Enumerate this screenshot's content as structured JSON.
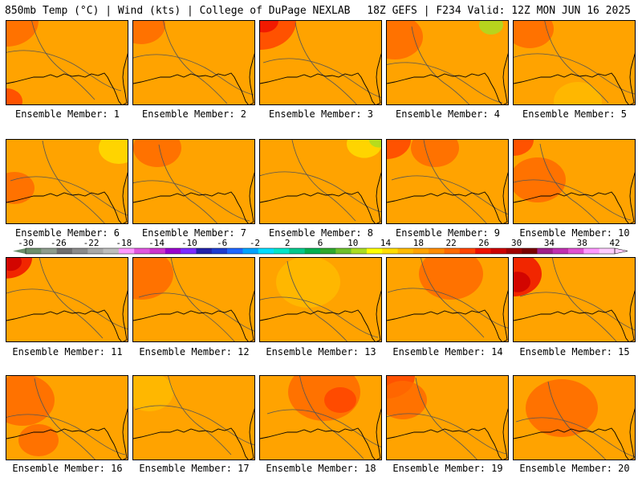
{
  "header": {
    "left": "850mb Temp (°C) | Wind (kts) | College of DuPage NEXLAB",
    "right": "18Z GEFS | F234 Valid: 12Z MON JUN 16 2025"
  },
  "colorbar": {
    "labels": [
      "-30",
      "-26",
      "-22",
      "-18",
      "-14",
      "-10",
      "-6",
      "-2",
      "2",
      "6",
      "10",
      "14",
      "18",
      "22",
      "26",
      "30",
      "34",
      "38",
      "42"
    ],
    "colors": [
      "#6b8f6b",
      "#8c9c8c",
      "#6e6e6e",
      "#8a8a8a",
      "#a8a8a8",
      "#bdbdbd",
      "#ff99ff",
      "#e055e0",
      "#cc33cc",
      "#9900cc",
      "#7a2bff",
      "#2222aa",
      "#1e3ccf",
      "#1e66ff",
      "#00a2ff",
      "#00ddff",
      "#00e5c8",
      "#00c78c",
      "#00b050",
      "#2ea82e",
      "#6cc02c",
      "#aadd22",
      "#ffff00",
      "#ffdd00",
      "#ffbb00",
      "#ffa300",
      "#ff8c00",
      "#ff6a00",
      "#ff4400",
      "#ee1100",
      "#cc0000",
      "#a00000",
      "#7a0000",
      "#a0208a",
      "#c030b0",
      "#e050d0",
      "#ff99ff",
      "#ffccff"
    ]
  },
  "panels": [
    {
      "label": "Ensemble Member: 1"
    },
    {
      "label": "Ensemble Member: 2"
    },
    {
      "label": "Ensemble Member: 3"
    },
    {
      "label": "Ensemble Member: 4"
    },
    {
      "label": "Ensemble Member: 5"
    },
    {
      "label": "Ensemble Member: 6"
    },
    {
      "label": "Ensemble Member: 7"
    },
    {
      "label": "Ensemble Member: 8"
    },
    {
      "label": "Ensemble Member: 9"
    },
    {
      "label": "Ensemble Member: 10"
    },
    {
      "label": "Ensemble Member: 11"
    },
    {
      "label": "Ensemble Member: 12"
    },
    {
      "label": "Ensemble Member: 13"
    },
    {
      "label": "Ensemble Member: 14"
    },
    {
      "label": "Ensemble Member: 15"
    },
    {
      "label": "Ensemble Member: 16"
    },
    {
      "label": "Ensemble Member: 17"
    },
    {
      "label": "Ensemble Member: 18"
    },
    {
      "label": "Ensemble Member: 19"
    },
    {
      "label": "Ensemble Member: 20"
    }
  ]
}
